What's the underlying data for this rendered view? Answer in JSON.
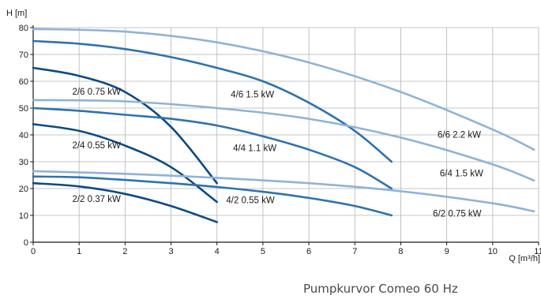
{
  "chart_data": {
    "type": "line",
    "xlabel": "Q [m³/h]",
    "ylabel": "H [m]",
    "xlim": [
      0,
      11
    ],
    "ylim": [
      0,
      80
    ],
    "x_ticks": [
      "0",
      "1",
      "2",
      "3",
      "4",
      "5",
      "6",
      "7",
      "8",
      "9",
      "10",
      "11"
    ],
    "y_ticks": [
      "0",
      "10",
      "20",
      "30",
      "40",
      "50",
      "60",
      "70",
      "80"
    ],
    "grid": true,
    "series": [
      {
        "name": "2/2 0.37 kW",
        "color": "#0c4a84",
        "x": [
          0,
          1,
          2,
          3,
          4
        ],
        "y": [
          22,
          20.8,
          18,
          13.5,
          7.5
        ]
      },
      {
        "name": "2/4 0.55 kW",
        "color": "#0c4a84",
        "x": [
          0,
          1,
          2,
          3,
          4
        ],
        "y": [
          44,
          41.5,
          36,
          28,
          15
        ]
      },
      {
        "name": "2/6 0.75 kW",
        "color": "#0c4a84",
        "x": [
          0,
          1,
          2,
          3,
          4
        ],
        "y": [
          65,
          62,
          56,
          43,
          22
        ]
      },
      {
        "name": "4/2 0.55 kW",
        "color": "#2f72ae",
        "x": [
          0,
          1,
          2,
          3,
          4,
          5,
          6,
          7,
          7.8
        ],
        "y": [
          24.5,
          24.2,
          23.2,
          22,
          20.6,
          18.8,
          16.5,
          13.5,
          10
        ]
      },
      {
        "name": "4/4 1.1 kW",
        "color": "#2f72ae",
        "x": [
          0,
          1,
          2,
          3,
          4,
          5,
          6,
          7,
          7.8
        ],
        "y": [
          50,
          49,
          47.5,
          46,
          43.5,
          39.5,
          34.5,
          28,
          20
        ]
      },
      {
        "name": "4/6 1.5 kW",
        "color": "#2f72ae",
        "x": [
          0,
          1,
          2,
          3,
          4,
          5,
          6,
          7,
          7.8
        ],
        "y": [
          75,
          74,
          72,
          69,
          65,
          60,
          52,
          41.5,
          30
        ]
      },
      {
        "name": "6/2 0.75 kW",
        "color": "#8fb3d6",
        "x": [
          0,
          2,
          4,
          6,
          8,
          10,
          10.9
        ],
        "y": [
          26.5,
          25.5,
          24,
          22,
          19,
          14.5,
          11.5
        ]
      },
      {
        "name": "6/4 1.5 kW",
        "color": "#8fb3d6",
        "x": [
          0,
          2,
          4,
          6,
          8,
          10,
          10.9
        ],
        "y": [
          53,
          52.5,
          50,
          46,
          39,
          29,
          23
        ]
      },
      {
        "name": "6/6 2.2 kW",
        "color": "#8fb3d6",
        "x": [
          0,
          2,
          4,
          6,
          8,
          10,
          10.9
        ],
        "y": [
          79.5,
          78.5,
          74.5,
          67,
          56,
          42,
          34.5
        ]
      }
    ],
    "labels": [
      {
        "text": "2/6 0.75 kW",
        "x": 0.85,
        "y": 55
      },
      {
        "text": "2/4 0.55 kW",
        "x": 0.85,
        "y": 35
      },
      {
        "text": "2/2 0.37 kW",
        "x": 0.85,
        "y": 15
      },
      {
        "text": "4/6 1.5 kW",
        "x": 4.3,
        "y": 54
      },
      {
        "text": "4/4 1.1 kW",
        "x": 4.35,
        "y": 34
      },
      {
        "text": "4/2 0.55 kW",
        "x": 4.2,
        "y": 14.5
      },
      {
        "text": "6/6 2.2 kW",
        "x": 8.8,
        "y": 39
      },
      {
        "text": "6/4 1.5 kW",
        "x": 8.85,
        "y": 24.5
      },
      {
        "text": "6/2 0.75 kW",
        "x": 8.7,
        "y": 9.5
      }
    ]
  },
  "caption": "Pumpkurvor Comeo 60 Hz"
}
